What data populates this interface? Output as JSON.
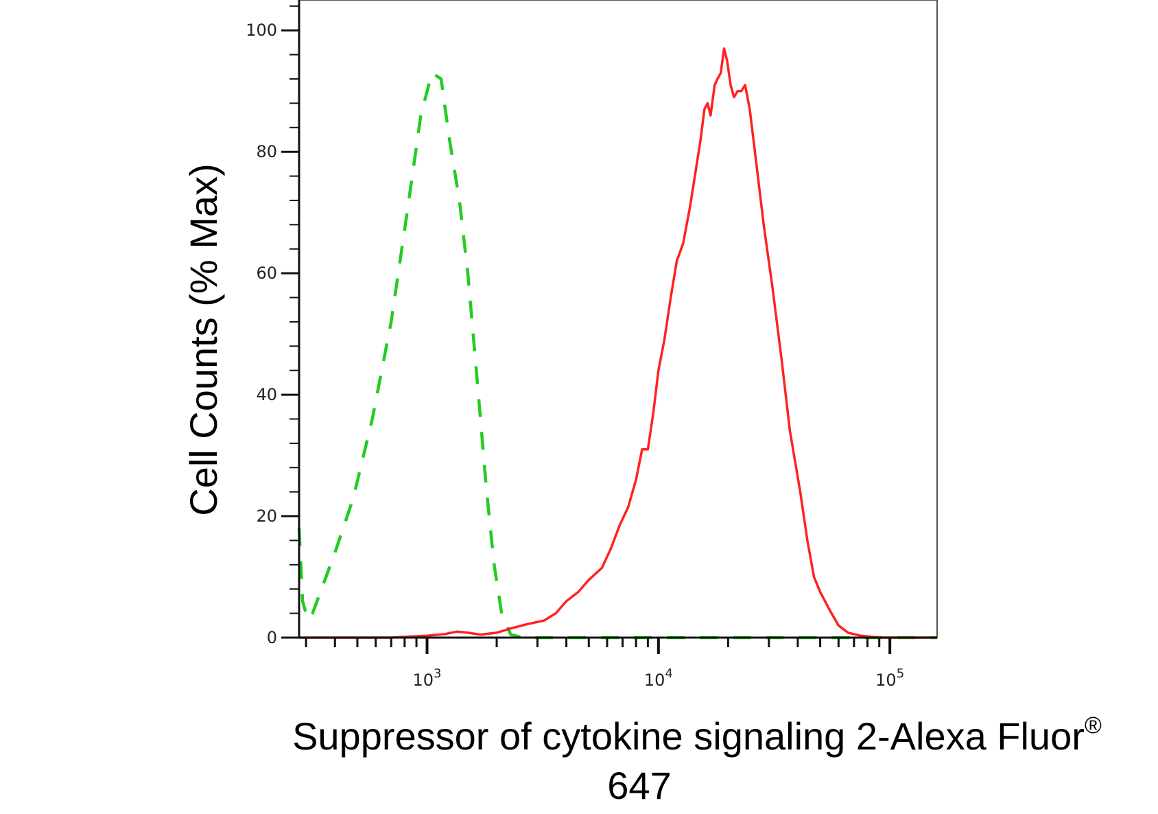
{
  "chart_data": {
    "type": "line",
    "chart_kind": "flow cytometry histogram",
    "xlabel_line1": "Suppressor of cytokine signaling 2-Alexa Fluor",
    "xlabel_sup": "®",
    "xlabel_line2": "647",
    "ylabel": "Cell Counts (% Max)",
    "x_scale": "log",
    "xlim": [
      280,
      160000
    ],
    "ylim": [
      0,
      105
    ],
    "x_ticks": [
      {
        "base": "10",
        "exp": "3",
        "value": 1000
      },
      {
        "base": "10",
        "exp": "4",
        "value": 10000
      },
      {
        "base": "10",
        "exp": "5",
        "value": 100000
      }
    ],
    "y_ticks": [
      "0",
      "20",
      "40",
      "60",
      "80",
      "100"
    ],
    "grid": false,
    "series": [
      {
        "style": "dashed",
        "color": "#22cc22",
        "points": [
          [
            280,
            18
          ],
          [
            290,
            6
          ],
          [
            305,
            3
          ],
          [
            320,
            4
          ],
          [
            350,
            8
          ],
          [
            400,
            14
          ],
          [
            480,
            23
          ],
          [
            580,
            36
          ],
          [
            700,
            52
          ],
          [
            820,
            70
          ],
          [
            940,
            86
          ],
          [
            1050,
            93
          ],
          [
            1150,
            92
          ],
          [
            1250,
            82
          ],
          [
            1380,
            72
          ],
          [
            1500,
            60
          ],
          [
            1650,
            42
          ],
          [
            1800,
            25
          ],
          [
            1950,
            12
          ],
          [
            2100,
            4
          ],
          [
            2300,
            0.5
          ],
          [
            2600,
            0
          ],
          [
            160000,
            0
          ]
        ]
      },
      {
        "style": "solid",
        "color": "#ff2222",
        "points": [
          [
            280,
            0
          ],
          [
            700,
            0
          ],
          [
            1000,
            0.3
          ],
          [
            1200,
            0.6
          ],
          [
            1350,
            1.0
          ],
          [
            1500,
            0.8
          ],
          [
            1700,
            0.5
          ],
          [
            2000,
            0.8
          ],
          [
            2300,
            1.5
          ],
          [
            2700,
            2.2
          ],
          [
            3200,
            2.8
          ],
          [
            3600,
            4.0
          ],
          [
            4000,
            6.0
          ],
          [
            4500,
            7.5
          ],
          [
            5000,
            9.5
          ],
          [
            5700,
            11.5
          ],
          [
            6200,
            14.5
          ],
          [
            6800,
            18.5
          ],
          [
            7400,
            21.5
          ],
          [
            8000,
            26.0
          ],
          [
            8500,
            31.0
          ],
          [
            9000,
            31.0
          ],
          [
            9500,
            37.0
          ],
          [
            10000,
            44.0
          ],
          [
            10600,
            49.0
          ],
          [
            11300,
            56.0
          ],
          [
            12000,
            62.0
          ],
          [
            12800,
            65.0
          ],
          [
            13700,
            71.0
          ],
          [
            14500,
            77.0
          ],
          [
            15200,
            82.0
          ],
          [
            15800,
            87.0
          ],
          [
            16300,
            88.0
          ],
          [
            16800,
            86.0
          ],
          [
            17500,
            91.0
          ],
          [
            18000,
            92.0
          ],
          [
            18600,
            93.0
          ],
          [
            19200,
            97.0
          ],
          [
            19800,
            95.0
          ],
          [
            20500,
            91.0
          ],
          [
            21200,
            89.0
          ],
          [
            22000,
            90.0
          ],
          [
            22800,
            90.0
          ],
          [
            23700,
            91.0
          ],
          [
            24800,
            87.0
          ],
          [
            26500,
            78.0
          ],
          [
            28500,
            68.0
          ],
          [
            31000,
            58.0
          ],
          [
            34000,
            46.0
          ],
          [
            37000,
            34.0
          ],
          [
            41000,
            24.0
          ],
          [
            44000,
            16.0
          ],
          [
            47000,
            10.0
          ],
          [
            50000,
            7.5
          ],
          [
            55000,
            4.5
          ],
          [
            60000,
            2.0
          ],
          [
            66000,
            0.8
          ],
          [
            75000,
            0.3
          ],
          [
            90000,
            0
          ],
          [
            160000,
            0
          ]
        ]
      }
    ]
  }
}
